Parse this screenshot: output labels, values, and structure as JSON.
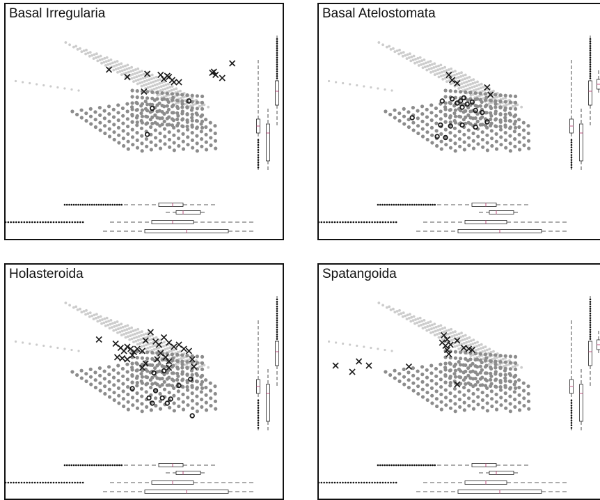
{
  "colors": {
    "light_points": "#cccccc",
    "dark_points": "#8c8c8c",
    "group_marks": "#1a1a1a",
    "box_median": "#c05080",
    "frame": "#111111"
  },
  "chart_data": [
    {
      "type": "scatter",
      "title": "Basal Irregularia",
      "cross_points": [
        [
          -2.0,
          1.2
        ],
        [
          -0.9,
          0.85
        ],
        [
          0.3,
          1.0
        ],
        [
          1.1,
          0.95
        ],
        [
          1.3,
          0.75
        ],
        [
          1.6,
          0.85
        ],
        [
          1.8,
          0.7
        ],
        [
          1.9,
          0.6
        ],
        [
          2.2,
          0.6
        ],
        [
          4.2,
          1.05
        ],
        [
          4.3,
          1.1
        ],
        [
          4.4,
          0.95
        ],
        [
          4.8,
          0.8
        ],
        [
          5.4,
          1.5
        ],
        [
          0.1,
          0.15
        ],
        [
          1.5,
          0.9
        ]
      ],
      "circle_points": [
        [
          0.6,
          -0.65
        ],
        [
          2.8,
          -0.3
        ],
        [
          0.3,
          -1.9
        ]
      ]
    },
    {
      "type": "scatter",
      "title": "Basal Atelostomata",
      "cross_points": [
        [
          -0.4,
          0.95
        ],
        [
          -0.2,
          0.7
        ],
        [
          0.1,
          0.55
        ],
        [
          1.9,
          0.35
        ],
        [
          2.1,
          0.0
        ]
      ],
      "circle_points": [
        [
          -0.8,
          -0.3
        ],
        [
          -0.2,
          -0.2
        ],
        [
          0.1,
          -0.4
        ],
        [
          0.3,
          -0.3
        ],
        [
          0.5,
          -0.15
        ],
        [
          0.7,
          -0.45
        ],
        [
          0.4,
          -0.6
        ],
        [
          1.0,
          -0.35
        ],
        [
          1.2,
          -0.75
        ],
        [
          1.6,
          -0.85
        ],
        [
          1.9,
          -1.3
        ],
        [
          -2.6,
          -1.1
        ],
        [
          -0.9,
          -1.45
        ],
        [
          -0.3,
          -1.5
        ],
        [
          -1.1,
          -2.0
        ],
        [
          -0.6,
          -2.05
        ],
        [
          0.4,
          -1.45
        ],
        [
          1.2,
          -1.55
        ]
      ]
    },
    {
      "type": "scatter",
      "title": "Holasteroida",
      "cross_points": [
        [
          -2.6,
          0.75
        ],
        [
          -1.6,
          0.55
        ],
        [
          -1.3,
          0.35
        ],
        [
          -1.1,
          0.2
        ],
        [
          -0.9,
          0.4
        ],
        [
          -0.7,
          0.3
        ],
        [
          -0.5,
          0.15
        ],
        [
          -0.3,
          0.3
        ],
        [
          0.0,
          0.2
        ],
        [
          -1.5,
          -0.1
        ],
        [
          -1.2,
          -0.15
        ],
        [
          -0.9,
          -0.2
        ],
        [
          -0.6,
          0.0
        ],
        [
          0.2,
          0.7
        ],
        [
          0.5,
          1.1
        ],
        [
          0.8,
          0.65
        ],
        [
          1.0,
          0.5
        ],
        [
          1.3,
          0.85
        ],
        [
          1.6,
          0.6
        ],
        [
          1.9,
          0.4
        ],
        [
          2.2,
          0.5
        ],
        [
          2.5,
          0.3
        ],
        [
          2.8,
          0.2
        ],
        [
          1.1,
          0.1
        ],
        [
          1.4,
          -0.1
        ],
        [
          1.6,
          -0.3
        ],
        [
          0.9,
          -0.2
        ],
        [
          0.2,
          -0.4
        ],
        [
          0.0,
          -0.6
        ],
        [
          3.0,
          -0.2
        ],
        [
          3.1,
          -0.55
        ],
        [
          1.6,
          -0.6
        ]
      ],
      "circle_points": [
        [
          1.3,
          -0.75
        ],
        [
          0.7,
          -0.85
        ],
        [
          2.9,
          -1.15
        ],
        [
          2.2,
          -1.45
        ],
        [
          0.8,
          -1.7
        ],
        [
          -0.6,
          -1.6
        ],
        [
          1.2,
          -2.05
        ],
        [
          1.7,
          -2.1
        ],
        [
          0.4,
          -2.05
        ],
        [
          0.6,
          -2.3
        ],
        [
          1.5,
          -2.3
        ],
        [
          3.0,
          -2.9
        ]
      ]
    },
    {
      "type": "scatter",
      "title": "Spatangoida",
      "cross_points": [
        [
          -0.7,
          0.95
        ],
        [
          -0.5,
          0.75
        ],
        [
          -0.8,
          0.6
        ],
        [
          -0.6,
          0.45
        ],
        [
          -0.3,
          0.5
        ],
        [
          -0.5,
          0.25
        ],
        [
          -0.4,
          0.05
        ],
        [
          0.1,
          0.7
        ],
        [
          0.5,
          0.35
        ],
        [
          0.8,
          0.3
        ],
        [
          1.0,
          0.25
        ],
        [
          -7.2,
          -0.5
        ],
        [
          -6.2,
          -0.8
        ],
        [
          -5.8,
          -0.3
        ],
        [
          -5.2,
          -0.5
        ],
        [
          -2.8,
          -0.55
        ],
        [
          0.1,
          -1.4
        ]
      ],
      "circle_points": []
    }
  ]
}
